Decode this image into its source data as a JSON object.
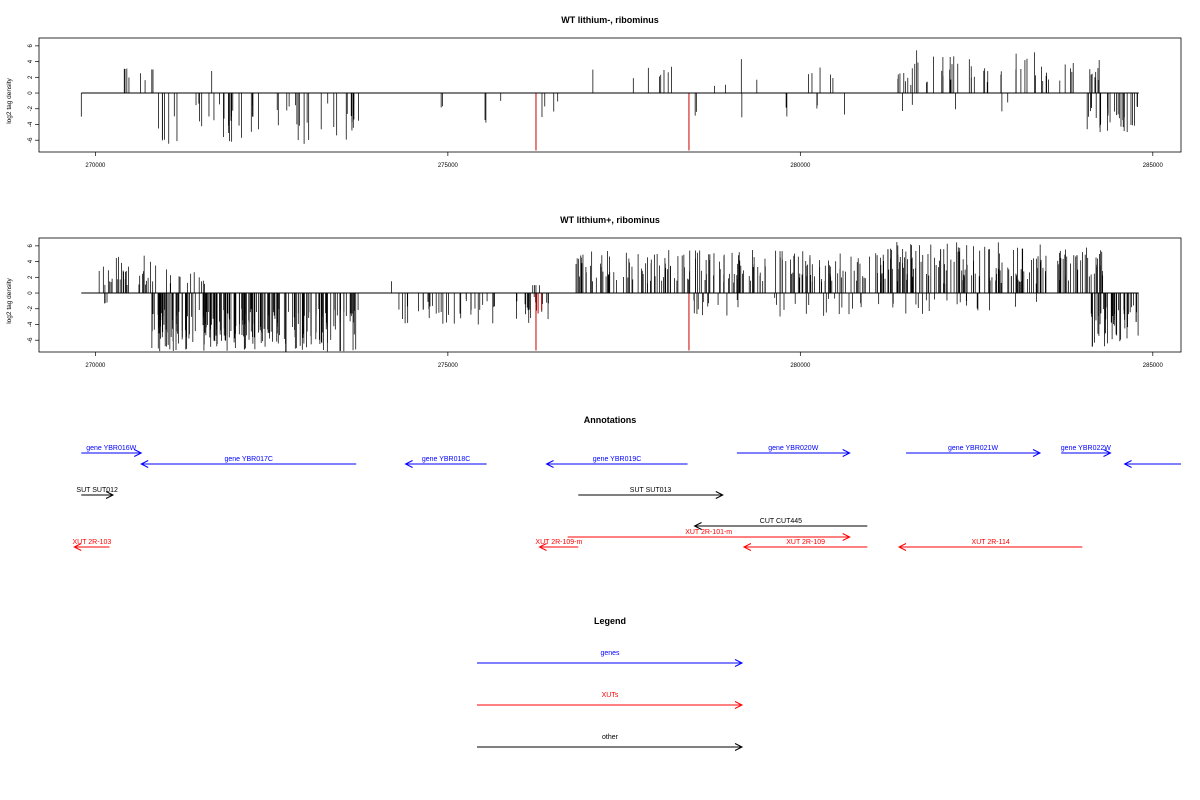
{
  "chart_data": [
    {
      "type": "bar",
      "title": "WT lithium-, ribominus",
      "xlabel": "",
      "ylabel": "log2 tag density",
      "xlim": [
        269200,
        285400
      ],
      "ylim": [
        -7.5,
        7
      ],
      "xticks": [
        270000,
        275000,
        280000,
        285000
      ],
      "yticks": [
        -6,
        -4,
        -2,
        0,
        2,
        4,
        6
      ],
      "baseline": {
        "x_start": 269800,
        "x_end": 284800,
        "y": 0
      },
      "segments": [
        {
          "x": [
            269800,
            269810
          ],
          "y": [
            -1,
            -3
          ],
          "amp": [
            -3.0,
            -3.0
          ]
        },
        {
          "x": [
            270250,
            270800
          ],
          "y": [
            1,
            6
          ],
          "amp": [
            1.5,
            3.5
          ]
        },
        {
          "x": [
            270800,
            270850
          ],
          "y": [
            1,
            2
          ],
          "amp": [
            3.0,
            3.0
          ]
        },
        {
          "x": [
            270750,
            273750
          ],
          "y": [
            -8,
            55
          ],
          "amp": [
            -6.5,
            -1.2
          ]
        },
        {
          "x": [
            271650,
            271680
          ],
          "y": [
            1,
            1
          ],
          "amp": [
            2.8,
            2.8
          ]
        },
        {
          "x": [
            274900,
            274950
          ],
          "y": [
            -1,
            2
          ],
          "amp": [
            -2.0,
            -1.0
          ]
        },
        {
          "x": [
            275500,
            275550
          ],
          "y": [
            -1,
            2
          ],
          "amp": [
            -3.8,
            -2.0
          ]
        },
        {
          "x": [
            275750,
            275800
          ],
          "y": [
            -1,
            1
          ],
          "amp": [
            -1.0,
            -1.0
          ]
        },
        {
          "x": [
            276300,
            276700
          ],
          "y": [
            -1,
            4
          ],
          "amp": [
            -3.5,
            -1.0
          ]
        },
        {
          "x": [
            276800,
            278300
          ],
          "y": [
            1,
            8
          ],
          "amp": [
            1.5,
            3.5
          ]
        },
        {
          "x": [
            278450,
            278550
          ],
          "y": [
            -1,
            2
          ],
          "amp": [
            -3.5,
            -2.0
          ]
        },
        {
          "x": [
            278700,
            279000
          ],
          "y": [
            1,
            2
          ],
          "amp": [
            0.8,
            1.2
          ]
        },
        {
          "x": [
            279050,
            280500
          ],
          "y": [
            1,
            7
          ],
          "amp": [
            1.5,
            5.0
          ]
        },
        {
          "x": [
            279100,
            280800
          ],
          "y": [
            -1,
            6
          ],
          "amp": [
            -3.5,
            -1.5
          ]
        },
        {
          "x": [
            281350,
            283600
          ],
          "y": [
            1,
            45
          ],
          "amp": [
            1.0,
            5.5
          ]
        },
        {
          "x": [
            281450,
            283600
          ],
          "y": [
            -1,
            5
          ],
          "amp": [
            -2.5,
            -1.0
          ]
        },
        {
          "x": [
            283650,
            284250
          ],
          "y": [
            1,
            14
          ],
          "amp": [
            1.5,
            4.5
          ]
        },
        {
          "x": [
            284050,
            284800
          ],
          "y": [
            -8,
            30
          ],
          "amp": [
            -5.0,
            -1.5
          ]
        }
      ],
      "red_bars": [
        {
          "x": 276250,
          "y": -7.3
        },
        {
          "x": 278420,
          "y": -7.3
        }
      ]
    },
    {
      "type": "bar",
      "title": "WT lithium+, ribominus",
      "xlabel": "",
      "ylabel": "log2 tag density",
      "xlim": [
        269200,
        285400
      ],
      "ylim": [
        -7.5,
        7
      ],
      "xticks": [
        270000,
        275000,
        280000,
        285000
      ],
      "yticks": [
        -6,
        -4,
        -2,
        0,
        2,
        4,
        6
      ],
      "baseline": {
        "x_start": 269800,
        "x_end": 284800,
        "y": 0
      },
      "segments": [
        {
          "x": [
            270020,
            270250
          ],
          "y": [
            -1,
            3
          ],
          "amp": [
            -1.5,
            -0.8
          ]
        },
        {
          "x": [
            270050,
            270900
          ],
          "y": [
            1,
            30
          ],
          "amp": [
            1.0,
            4.8
          ]
        },
        {
          "x": [
            270800,
            273750
          ],
          "y": [
            -8,
            220
          ],
          "amp": [
            -7.5,
            -2.0
          ]
        },
        {
          "x": [
            271000,
            271700
          ],
          "y": [
            1,
            12
          ],
          "amp": [
            1.0,
            3.0
          ]
        },
        {
          "x": [
            274200,
            274250
          ],
          "y": [
            1,
            1
          ],
          "amp": [
            1.5,
            1.5
          ]
        },
        {
          "x": [
            274300,
            276200
          ],
          "y": [
            -1,
            40
          ],
          "amp": [
            -4.0,
            -0.5
          ]
        },
        {
          "x": [
            276100,
            276450
          ],
          "y": [
            -1,
            12
          ],
          "amp": [
            -3.5,
            -0.5
          ]
        },
        {
          "x": [
            276150,
            276300
          ],
          "y": [
            1,
            4
          ],
          "amp": [
            1.0,
            1.0
          ]
        },
        {
          "x": [
            276800,
            281200
          ],
          "y": [
            1,
            180
          ],
          "amp": [
            1.2,
            5.5
          ]
        },
        {
          "x": [
            278300,
            281200
          ],
          "y": [
            -1,
            30
          ],
          "amp": [
            -3.0,
            -0.5
          ]
        },
        {
          "x": [
            281200,
            283500
          ],
          "y": [
            1,
            120
          ],
          "amp": [
            1.0,
            6.5
          ]
        },
        {
          "x": [
            281300,
            283600
          ],
          "y": [
            -1,
            20
          ],
          "amp": [
            -3.0,
            -0.5
          ]
        },
        {
          "x": [
            283650,
            284300
          ],
          "y": [
            1,
            40
          ],
          "amp": [
            1.5,
            6.0
          ]
        },
        {
          "x": [
            284100,
            284800
          ],
          "y": [
            -8,
            45
          ],
          "amp": [
            -7.0,
            -1.5
          ]
        }
      ],
      "red_bars": [
        {
          "x": 276250,
          "y": -7.3
        },
        {
          "x": 278420,
          "y": -7.3
        },
        {
          "x": 276280,
          "y": -2.6
        },
        {
          "x": 276330,
          "y": -2.2
        }
      ]
    }
  ],
  "annotations": {
    "title": "Annotations",
    "features": [
      {
        "label": "gene YBR016W",
        "category": "genes",
        "start": 269800,
        "end": 270650,
        "row": 1
      },
      {
        "label": "gene YBR017C",
        "category": "genes",
        "start": 273700,
        "end": 270650,
        "row": 2
      },
      {
        "label": "gene YBR018C",
        "category": "genes",
        "start": 275550,
        "end": 274400,
        "row": 2
      },
      {
        "label": "gene YBR019C",
        "category": "genes",
        "start": 278400,
        "end": 276400,
        "row": 2
      },
      {
        "label": "gene YBR020W",
        "category": "genes",
        "start": 279100,
        "end": 280700,
        "row": 1
      },
      {
        "label": "gene YBR021W",
        "category": "genes",
        "start": 281500,
        "end": 283400,
        "row": 1
      },
      {
        "label": "gene YBR022W",
        "category": "genes",
        "start": 283700,
        "end": 284400,
        "row": 1
      },
      {
        "label": "",
        "category": "genes",
        "start": 285400,
        "end": 284600,
        "row": 2
      },
      {
        "label": "SUT SUT012",
        "category": "other",
        "start": 269800,
        "end": 270250,
        "row": 3
      },
      {
        "label": "SUT SUT013",
        "category": "other",
        "start": 276850,
        "end": 278900,
        "row": 3
      },
      {
        "label": "CUT CUT445",
        "category": "other",
        "start": 280950,
        "end": 278500,
        "row": 4
      },
      {
        "label": "XUT 2R-101-m",
        "category": "XUTs",
        "start": 276700,
        "end": 280700,
        "row": 5
      },
      {
        "label": "XUT 2R-103",
        "category": "XUTs",
        "start": 270200,
        "end": 269700,
        "row": 6
      },
      {
        "label": "XUT 2R-109-m",
        "category": "XUTs",
        "start": 276850,
        "end": 276300,
        "row": 6
      },
      {
        "label": "XUT 2R-109",
        "category": "XUTs",
        "start": 280950,
        "end": 279200,
        "row": 6
      },
      {
        "label": "XUT 2R-114",
        "category": "XUTs",
        "start": 284000,
        "end": 281400,
        "row": 6
      }
    ]
  },
  "legend": {
    "title": "Legend",
    "items": [
      {
        "label": "genes",
        "color": "#0000ff"
      },
      {
        "label": "XUTs",
        "color": "#ff0000"
      },
      {
        "label": "other",
        "color": "#000000"
      }
    ]
  },
  "colors": {
    "genes": "#0000ff",
    "XUTs": "#ff0000",
    "other": "#000000",
    "highlight": "#cc0000"
  }
}
